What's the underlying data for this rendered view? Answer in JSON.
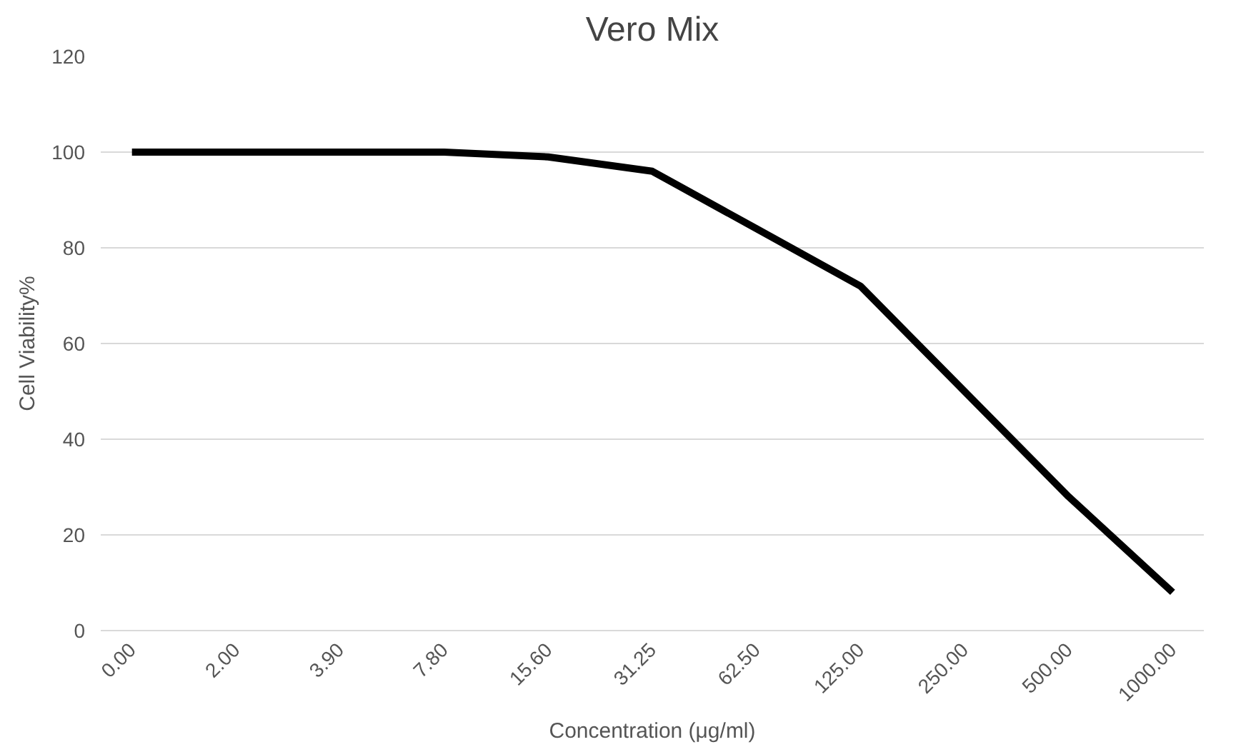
{
  "chart_data": {
    "type": "line",
    "title": "Vero Mix",
    "xlabel": "Concentration (μg/ml)",
    "ylabel": "Cell Viability%",
    "categories": [
      "0.00",
      "2.00",
      "3.90",
      "7.80",
      "15.60",
      "31.25",
      "62.50",
      "125.00",
      "250.00",
      "500.00",
      "1000.00"
    ],
    "series": [
      {
        "color": "#000000",
        "values": [
          100,
          100,
          100,
          100,
          99,
          96,
          84,
          72,
          50,
          28,
          8
        ]
      }
    ],
    "ylim": [
      0,
      120
    ],
    "yticks": [
      0,
      20,
      40,
      60,
      80,
      100,
      120
    ],
    "grid": "y",
    "marker": "none",
    "line_style": "solid"
  }
}
